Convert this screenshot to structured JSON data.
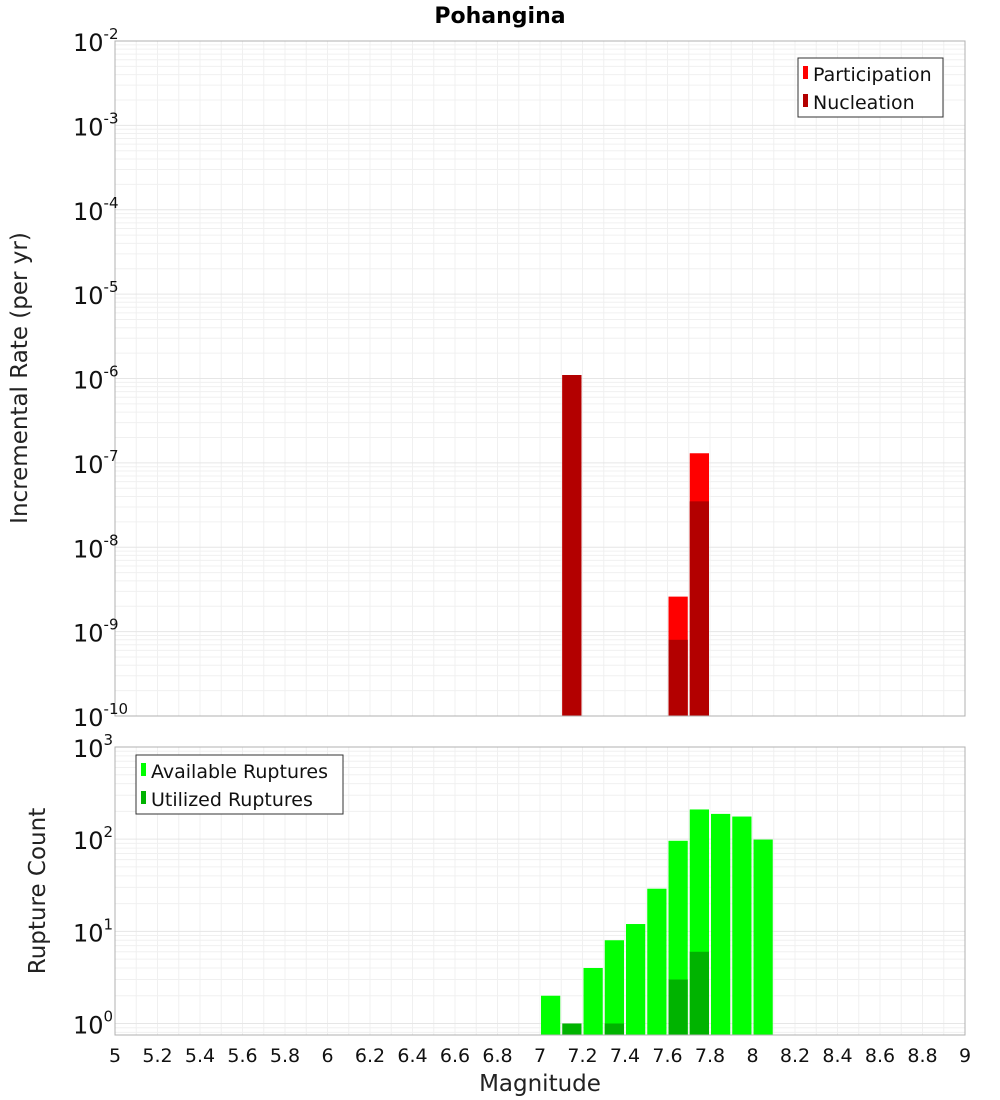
{
  "chart_data": [
    {
      "type": "bar",
      "title": "Pohangina",
      "xlabel": "",
      "ylabel": "Incremental Rate (per yr)",
      "yscale": "log",
      "ylim": [
        1e-10,
        0.01
      ],
      "xlim": [
        5,
        9
      ],
      "bar_width": 0.1,
      "grid": true,
      "legend_position": "top-right",
      "y_tick_labels": [
        {
          "base": "10",
          "exp": "-10",
          "value": 1e-10
        },
        {
          "base": "10",
          "exp": "-9",
          "value": 1e-09
        },
        {
          "base": "10",
          "exp": "-8",
          "value": 1e-08
        },
        {
          "base": "10",
          "exp": "-7",
          "value": 1e-07
        },
        {
          "base": "10",
          "exp": "-6",
          "value": 1e-06
        },
        {
          "base": "10",
          "exp": "-5",
          "value": 1e-05
        },
        {
          "base": "10",
          "exp": "-4",
          "value": 0.0001
        },
        {
          "base": "10",
          "exp": "-3",
          "value": 0.001
        },
        {
          "base": "10",
          "exp": "-2",
          "value": 0.01
        }
      ],
      "series": [
        {
          "name": "Participation",
          "color": "#ff0000",
          "points": [
            {
              "x": 7.15,
              "y": 1.1e-06
            },
            {
              "x": 7.65,
              "y": 2.6e-09
            },
            {
              "x": 7.75,
              "y": 1.3e-07
            }
          ]
        },
        {
          "name": "Nucleation",
          "color": "#b30000",
          "points": [
            {
              "x": 7.15,
              "y": 1.1e-06
            },
            {
              "x": 7.65,
              "y": 8e-10
            },
            {
              "x": 7.75,
              "y": 3.5e-08
            }
          ]
        }
      ]
    },
    {
      "type": "bar",
      "title": "",
      "xlabel": "Magnitude",
      "ylabel": "Rupture Count",
      "yscale": "log",
      "ylim": [
        0.75,
        1000
      ],
      "xlim": [
        5,
        9
      ],
      "bar_width": 0.1,
      "grid": true,
      "legend_position": "top-left",
      "x_tick_labels": [
        "5",
        "5.2",
        "5.4",
        "5.6",
        "5.8",
        "6",
        "6.2",
        "6.4",
        "6.6",
        "6.8",
        "7",
        "7.2",
        "7.4",
        "7.6",
        "7.8",
        "8",
        "8.2",
        "8.4",
        "8.6",
        "8.8",
        "9"
      ],
      "y_tick_labels": [
        {
          "base": "10",
          "exp": "0",
          "value": 1
        },
        {
          "base": "10",
          "exp": "1",
          "value": 10
        },
        {
          "base": "10",
          "exp": "2",
          "value": 100
        },
        {
          "base": "10",
          "exp": "3",
          "value": 1000
        }
      ],
      "series": [
        {
          "name": "Available Ruptures",
          "color": "#00ff00",
          "points": [
            {
              "x": 7.05,
              "y": 2
            },
            {
              "x": 7.25,
              "y": 4
            },
            {
              "x": 7.35,
              "y": 8
            },
            {
              "x": 7.45,
              "y": 12
            },
            {
              "x": 7.55,
              "y": 29
            },
            {
              "x": 7.65,
              "y": 96
            },
            {
              "x": 7.75,
              "y": 210
            },
            {
              "x": 7.85,
              "y": 188
            },
            {
              "x": 7.95,
              "y": 176
            },
            {
              "x": 8.05,
              "y": 99
            }
          ]
        },
        {
          "name": "Utilized Ruptures",
          "color": "#00b300",
          "points": [
            {
              "x": 7.15,
              "y": 1
            },
            {
              "x": 7.35,
              "y": 1
            },
            {
              "x": 7.65,
              "y": 3
            },
            {
              "x": 7.75,
              "y": 6
            }
          ]
        }
      ]
    }
  ]
}
